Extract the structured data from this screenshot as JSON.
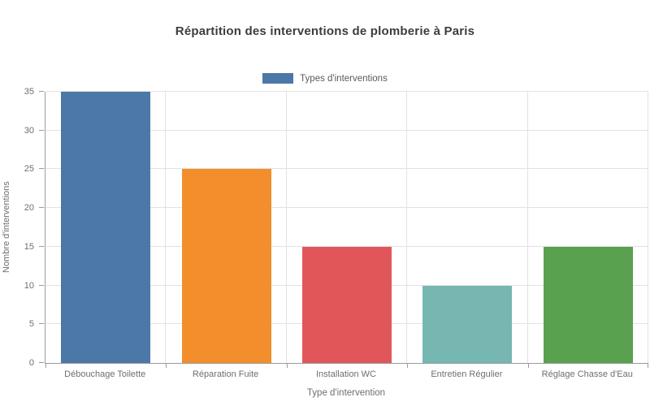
{
  "chart_data": {
    "type": "bar",
    "title": "Répartition des interventions de plomberie à Paris",
    "categories": [
      "Débouchage Toilette",
      "Réparation Fuite",
      "Installation WC",
      "Entretien Régulier",
      "Réglage Chasse d'Eau"
    ],
    "values": [
      35,
      25,
      15,
      10,
      15
    ],
    "bar_colors": [
      "#4C78A8",
      "#F28E2C",
      "#E15759",
      "#76B7B2",
      "#59A14F"
    ],
    "xlabel": "Type d'intervention",
    "ylabel": "Nombre d'interventions",
    "ylim": [
      0,
      35
    ],
    "ytick_step": 5,
    "ytick_labels": [
      "0",
      "5",
      "10",
      "15",
      "20",
      "25",
      "30",
      "35"
    ],
    "legend": {
      "label": "Types d'interventions",
      "swatch_color": "#4C78A8",
      "position": "top-center"
    },
    "grid": "both",
    "colors": {
      "title_text": "#3d3d3d",
      "axis_text": "#6e6e6e",
      "axis_line": "#9b9b9b",
      "gridline": "#e2e2e2",
      "background": "#ffffff"
    }
  }
}
